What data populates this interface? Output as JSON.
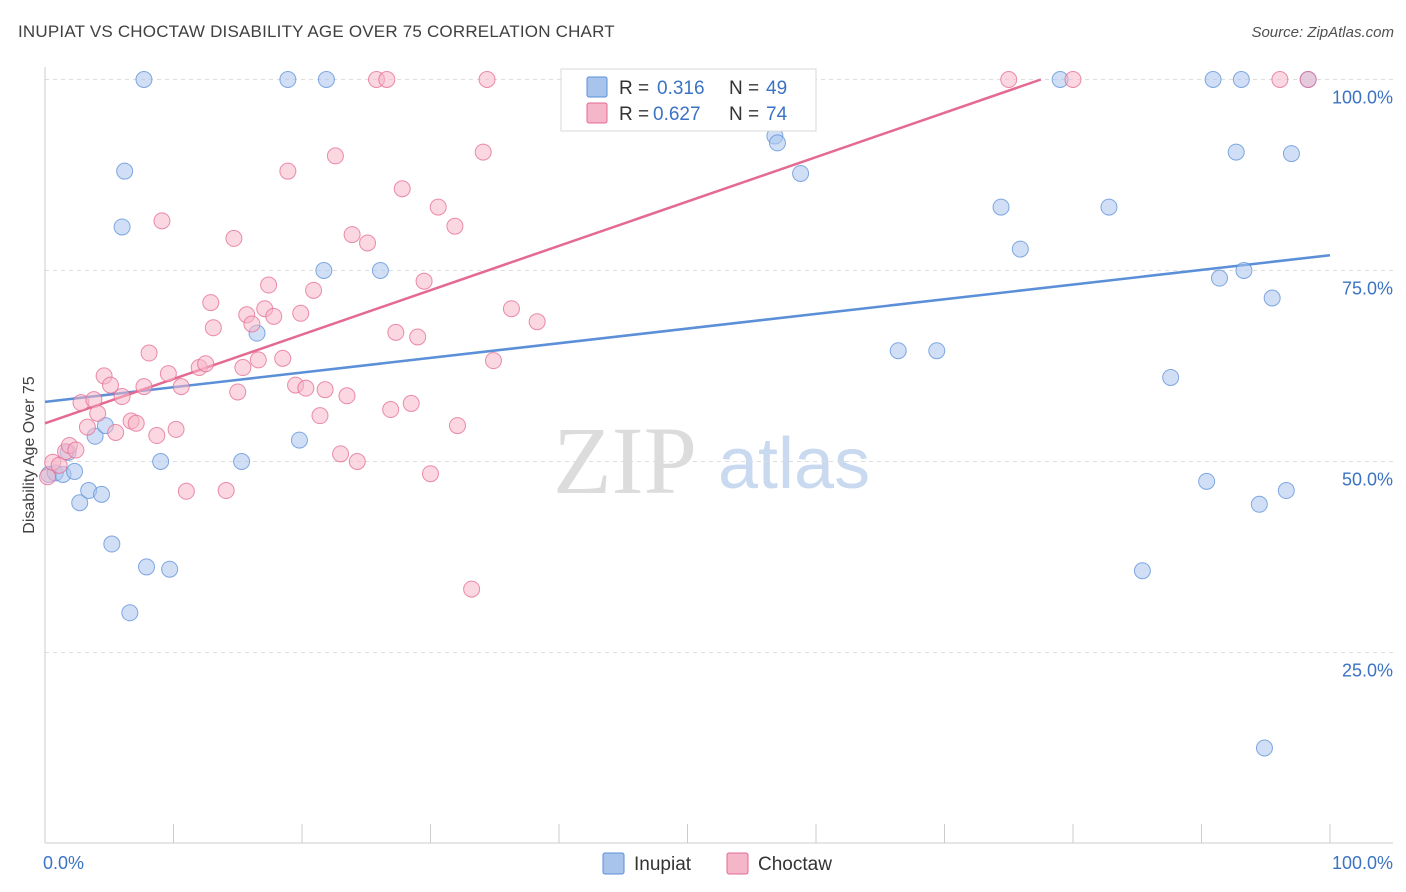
{
  "header": {
    "title": "INUPIAT VS CHOCTAW DISABILITY AGE OVER 75 CORRELATION CHART",
    "source": "Source: ZipAtlas.com"
  },
  "watermark": {
    "zip": "ZIP",
    "atlas": "atlas"
  },
  "legend_top": {
    "rows": [
      {
        "r_label": "R =",
        "r_value": "0.316",
        "n_label": "N =",
        "n_value": "49",
        "color": "#a9c4ec"
      },
      {
        "r_label": "R =",
        "r_value": "0.627",
        "n_label": "N =",
        "n_value": "74",
        "color": "#f6b6c9"
      }
    ]
  },
  "legend_bottom": {
    "items": [
      {
        "label": "Inupiat",
        "color": "#a9c4ec"
      },
      {
        "label": "Choctaw",
        "color": "#f6b6c9"
      }
    ]
  },
  "chart_data": {
    "type": "scatter",
    "title": "INUPIAT VS CHOCTAW DISABILITY AGE OVER 75 CORRELATION CHART",
    "xlabel": "",
    "ylabel": "Disability Age Over 75",
    "xlim": [
      0,
      100
    ],
    "ylim": [
      5,
      105
    ],
    "x_tick_labels": [
      "0.0%",
      "100.0%"
    ],
    "y_ticks": [
      25,
      50,
      75,
      100
    ],
    "y_tick_labels": [
      "25.0%",
      "50.0%",
      "75.0%",
      "100.0%"
    ],
    "grid": "horizontal dashed",
    "legend_placement": "top-center and bottom",
    "series": [
      {
        "name": "Inupiat",
        "color": "#5b8fd8",
        "fill": "#a9c4ec",
        "trend": {
          "x": [
            0,
            100
          ],
          "y": [
            57.8,
            77.0
          ]
        },
        "points": [
          [
            0.3,
            48.3
          ],
          [
            0.8,
            48.5
          ],
          [
            1.4,
            48.3
          ],
          [
            1.8,
            51.2
          ],
          [
            2.3,
            48.7
          ],
          [
            2.7,
            44.6
          ],
          [
            3.4,
            46.2
          ],
          [
            3.9,
            53.3
          ],
          [
            4.4,
            45.7
          ],
          [
            4.7,
            54.7
          ],
          [
            5.2,
            39.2
          ],
          [
            6.0,
            80.7
          ],
          [
            6.2,
            88.0
          ],
          [
            6.6,
            30.2
          ],
          [
            7.7,
            100.0
          ],
          [
            7.9,
            36.2
          ],
          [
            9.0,
            50.0
          ],
          [
            9.7,
            35.9
          ],
          [
            15.3,
            50.0
          ],
          [
            16.5,
            66.8
          ],
          [
            18.9,
            100.0
          ],
          [
            19.8,
            52.8
          ],
          [
            21.7,
            75.0
          ],
          [
            21.9,
            100.0
          ],
          [
            26.1,
            75.0
          ],
          [
            53.0,
            95.5
          ],
          [
            56.8,
            92.6
          ],
          [
            57.0,
            91.7
          ],
          [
            58.8,
            87.7
          ],
          [
            66.4,
            64.5
          ],
          [
            69.4,
            64.5
          ],
          [
            74.4,
            83.3
          ],
          [
            75.9,
            77.8
          ],
          [
            79.0,
            100.0
          ],
          [
            82.8,
            83.3
          ],
          [
            85.4,
            35.7
          ],
          [
            87.6,
            61.0
          ],
          [
            90.4,
            47.4
          ],
          [
            90.9,
            100.0
          ],
          [
            91.4,
            74.0
          ],
          [
            92.7,
            90.5
          ],
          [
            93.1,
            100.0
          ],
          [
            93.3,
            75.0
          ],
          [
            94.5,
            44.4
          ],
          [
            94.9,
            12.5
          ],
          [
            95.5,
            71.4
          ],
          [
            96.6,
            46.2
          ],
          [
            97.0,
            90.3
          ],
          [
            98.3,
            100.0
          ]
        ]
      },
      {
        "name": "Choctaw",
        "color": "#e46a91",
        "fill": "#f6b6c9",
        "trend": {
          "x": [
            0,
            77.5
          ],
          "y": [
            55.0,
            100.0
          ]
        },
        "points": [
          [
            0.2,
            48.0
          ],
          [
            0.6,
            49.9
          ],
          [
            1.1,
            49.5
          ],
          [
            1.6,
            51.3
          ],
          [
            1.9,
            52.1
          ],
          [
            2.4,
            51.5
          ],
          [
            2.8,
            57.7
          ],
          [
            3.3,
            54.5
          ],
          [
            3.8,
            58.1
          ],
          [
            4.1,
            56.3
          ],
          [
            4.6,
            61.2
          ],
          [
            5.1,
            60.0
          ],
          [
            5.5,
            53.8
          ],
          [
            6.0,
            58.5
          ],
          [
            6.7,
            55.3
          ],
          [
            7.1,
            55.0
          ],
          [
            7.7,
            59.8
          ],
          [
            8.1,
            64.2
          ],
          [
            8.7,
            53.4
          ],
          [
            9.1,
            81.5
          ],
          [
            9.6,
            61.5
          ],
          [
            10.2,
            54.2
          ],
          [
            10.6,
            59.8
          ],
          [
            11.0,
            46.1
          ],
          [
            12.0,
            62.3
          ],
          [
            12.5,
            62.8
          ],
          [
            12.9,
            70.8
          ],
          [
            13.1,
            67.5
          ],
          [
            14.1,
            46.2
          ],
          [
            14.7,
            79.2
          ],
          [
            15.0,
            59.1
          ],
          [
            15.4,
            62.3
          ],
          [
            15.7,
            69.2
          ],
          [
            16.1,
            68.0
          ],
          [
            16.6,
            63.3
          ],
          [
            17.1,
            70.0
          ],
          [
            17.4,
            73.1
          ],
          [
            17.8,
            69.0
          ],
          [
            18.5,
            63.5
          ],
          [
            18.9,
            88.0
          ],
          [
            19.5,
            60.0
          ],
          [
            19.9,
            69.4
          ],
          [
            20.3,
            59.6
          ],
          [
            20.9,
            72.4
          ],
          [
            21.4,
            56.0
          ],
          [
            21.8,
            59.4
          ],
          [
            22.6,
            90.0
          ],
          [
            23.0,
            51.0
          ],
          [
            23.5,
            58.6
          ],
          [
            23.9,
            79.7
          ],
          [
            24.3,
            50.0
          ],
          [
            25.1,
            78.6
          ],
          [
            25.8,
            100.0
          ],
          [
            26.6,
            100.0
          ],
          [
            26.9,
            56.8
          ],
          [
            27.3,
            66.9
          ],
          [
            27.8,
            85.7
          ],
          [
            28.5,
            57.6
          ],
          [
            29.0,
            66.3
          ],
          [
            29.5,
            73.6
          ],
          [
            30.0,
            48.4
          ],
          [
            30.6,
            83.3
          ],
          [
            31.9,
            80.8
          ],
          [
            32.1,
            54.7
          ],
          [
            33.2,
            33.3
          ],
          [
            34.1,
            90.5
          ],
          [
            34.4,
            100.0
          ],
          [
            34.9,
            63.2
          ],
          [
            36.3,
            70.0
          ],
          [
            38.3,
            68.3
          ],
          [
            75.0,
            100.0
          ],
          [
            80.0,
            100.0
          ],
          [
            96.1,
            100.0
          ],
          [
            98.3,
            100.0
          ]
        ]
      }
    ]
  }
}
